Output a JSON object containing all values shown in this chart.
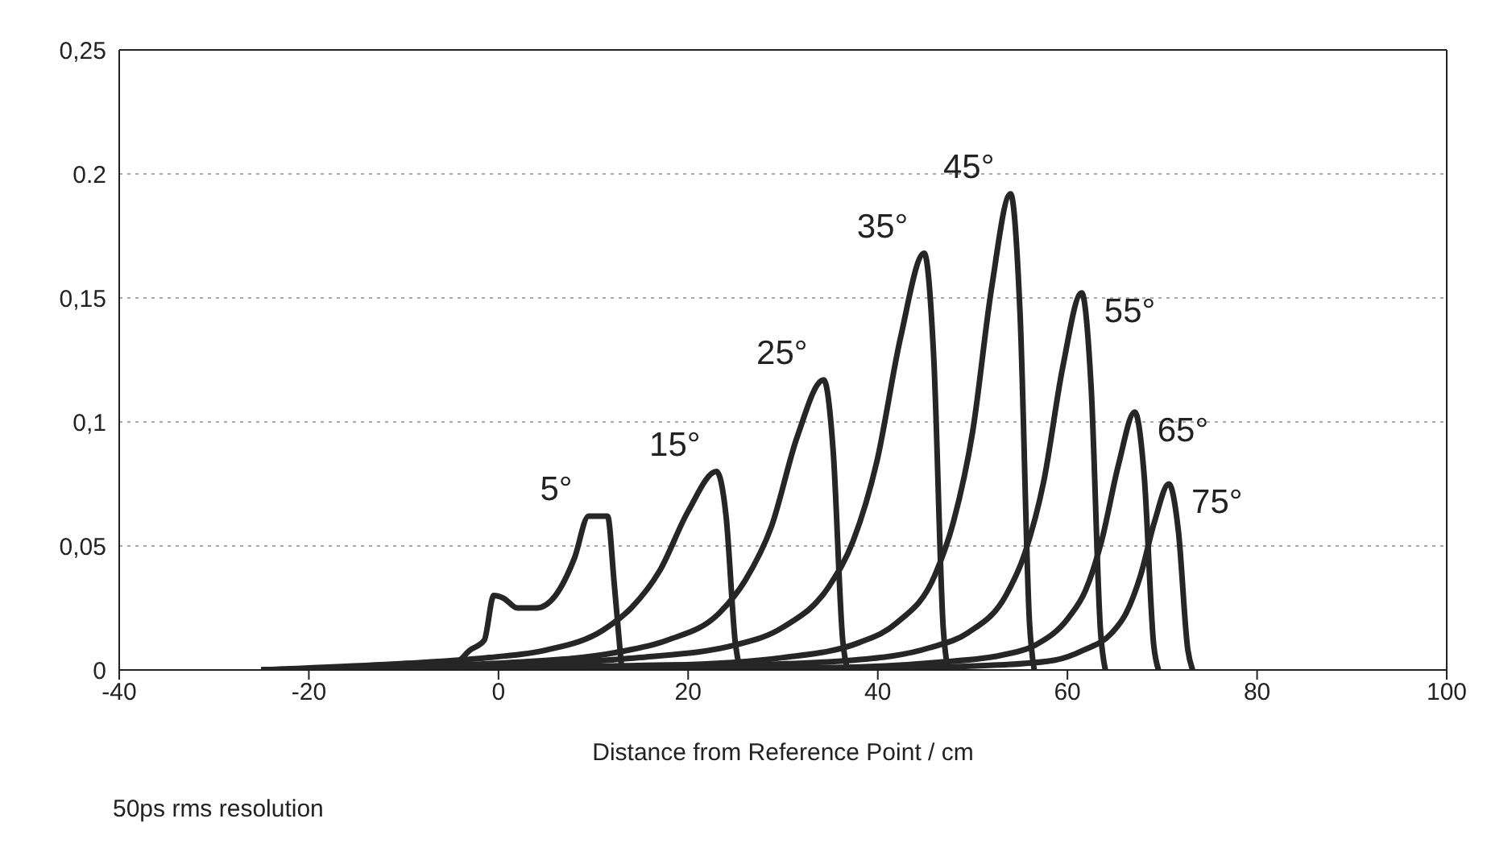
{
  "chart_data": {
    "type": "line",
    "xlabel": "Distance from Reference Point / cm",
    "annotations": [
      "50ps rms resolution"
    ],
    "xlim": [
      -40,
      100
    ],
    "xticks": [
      -40,
      -20,
      0,
      20,
      40,
      60,
      80,
      100
    ],
    "ylim": [
      0,
      0.25
    ],
    "yticks": [
      {
        "value": 0,
        "label": "0"
      },
      {
        "value": 0.05,
        "label": "0,05"
      },
      {
        "value": 0.1,
        "label": "0,1"
      },
      {
        "value": 0.15,
        "label": "0,15"
      },
      {
        "value": 0.2,
        "label": "0.2"
      },
      {
        "value": 0.25,
        "label": "0,25"
      }
    ],
    "grid": "y",
    "marker": "none",
    "line_style": "solid",
    "series": [
      {
        "name": "5°",
        "color": "#262626",
        "x": [
          -25,
          -10,
          -4.5,
          -3,
          -1.5,
          -0.5,
          0.5,
          2,
          4,
          6,
          8,
          9.5,
          11.5,
          12.2,
          13
        ],
        "values": [
          0,
          0.001,
          0.003,
          0.008,
          0.012,
          0.03,
          0.029,
          0.025,
          0.025,
          0.03,
          0.045,
          0.062,
          0.062,
          0.035,
          0
        ]
      },
      {
        "name": "15°",
        "color": "#262626",
        "x": [
          -25,
          -13,
          -1,
          5,
          11,
          14,
          17,
          20,
          23,
          24,
          25,
          25.5
        ],
        "values": [
          0,
          0.002,
          0.005,
          0.008,
          0.016,
          0.025,
          0.04,
          0.064,
          0.08,
          0.062,
          0.01,
          0
        ]
      },
      {
        "name": "25°",
        "color": "#262626",
        "x": [
          -25,
          -15.2,
          1.3,
          12.3,
          17.8,
          23.3,
          26,
          28.8,
          31.5,
          34.3,
          35.3,
          36.3,
          36.8
        ],
        "values": [
          0,
          0.001,
          0.003,
          0.007,
          0.012,
          0.023,
          0.036,
          0.058,
          0.094,
          0.117,
          0.088,
          0.012,
          0
        ]
      },
      {
        "name": "35°",
        "color": "#262626",
        "x": [
          -25,
          -0.1,
          14.9,
          24.9,
          29.9,
          34.9,
          37.4,
          39.9,
          42.4,
          44.9,
          45.9,
          46.9,
          47.4
        ],
        "values": [
          0,
          0.002,
          0.005,
          0.01,
          0.017,
          0.034,
          0.052,
          0.084,
          0.134,
          0.168,
          0.126,
          0.017,
          0
        ]
      },
      {
        "name": "45°",
        "color": "#262626",
        "x": [
          -25,
          -5,
          18,
          30,
          38,
          42,
          46,
          48,
          50,
          52,
          54,
          55,
          56,
          56.5
        ],
        "values": [
          0,
          0.001,
          0.002,
          0.005,
          0.011,
          0.019,
          0.038,
          0.06,
          0.096,
          0.154,
          0.192,
          0.144,
          0.019,
          0
        ]
      },
      {
        "name": "55°",
        "color": "#262626",
        "x": [
          -20,
          25.5,
          37.5,
          45.5,
          49.5,
          53.5,
          55.5,
          57.5,
          59.5,
          61.5,
          62.5,
          63.5,
          64
        ],
        "values": [
          0,
          0.002,
          0.004,
          0.009,
          0.015,
          0.03,
          0.047,
          0.076,
          0.122,
          0.152,
          0.114,
          0.015,
          0
        ]
      },
      {
        "name": "65°",
        "color": "#262626",
        "x": [
          -15,
          35.6,
          46.1,
          53.1,
          56.6,
          60.1,
          61.9,
          63.6,
          65.4,
          67.1,
          68.1,
          69.1,
          69.6
        ],
        "values": [
          0,
          0.001,
          0.003,
          0.006,
          0.01,
          0.021,
          0.032,
          0.052,
          0.083,
          0.104,
          0.078,
          0.01,
          0
        ]
      },
      {
        "name": "75°",
        "color": "#262626",
        "x": [
          -10,
          43.7,
          52.7,
          58.7,
          61.7,
          64.7,
          66.2,
          67.7,
          69.2,
          70.7,
          71.7,
          72.7,
          73.2
        ],
        "values": [
          0,
          0.001,
          0.002,
          0.004,
          0.008,
          0.015,
          0.023,
          0.038,
          0.06,
          0.075,
          0.056,
          0.008,
          0
        ]
      }
    ]
  }
}
